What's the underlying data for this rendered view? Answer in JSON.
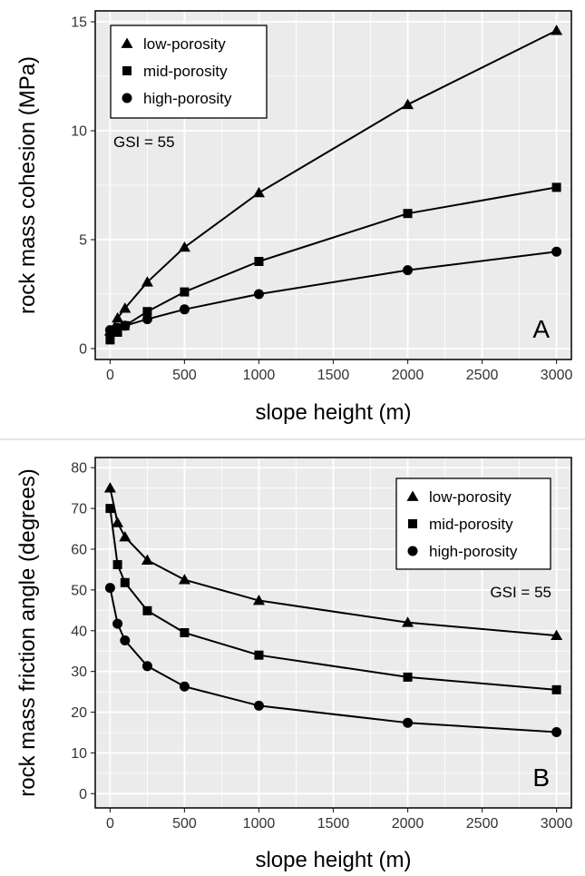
{
  "chart_data": [
    {
      "type": "line",
      "panel": "A",
      "xlabel": "slope height (m)",
      "ylabel": "rock mass cohesion (MPa)",
      "xlim": [
        -100,
        3100
      ],
      "ylim": [
        -0.5,
        15.5
      ],
      "xticks": [
        0,
        500,
        1000,
        1500,
        2000,
        2500,
        3000
      ],
      "yticks": [
        0,
        5,
        10,
        15
      ],
      "x": [
        0,
        50,
        100,
        250,
        500,
        1000,
        2000,
        3000
      ],
      "series": [
        {
          "name": "low-porosity",
          "marker": "triangle",
          "values": [
            0.8,
            1.4,
            1.85,
            3.05,
            4.65,
            7.15,
            11.2,
            14.6
          ]
        },
        {
          "name": "mid-porosity",
          "marker": "square",
          "values": [
            0.4,
            0.75,
            1.05,
            1.7,
            2.6,
            4.0,
            6.2,
            7.4
          ]
        },
        {
          "name": "high-porosity",
          "marker": "circle",
          "values": [
            0.85,
            0.95,
            1.05,
            1.35,
            1.8,
            2.5,
            3.6,
            4.45
          ]
        }
      ],
      "annotation": "GSI = 55",
      "panel_label": "A",
      "legend_position": "top-left",
      "grid": true
    },
    {
      "type": "line",
      "panel": "B",
      "xlabel": "slope height (m)",
      "ylabel": "rock mass friction angle (degrees)",
      "xlim": [
        -100,
        3100
      ],
      "ylim": [
        -3.5,
        82.5
      ],
      "xticks": [
        0,
        500,
        1000,
        1500,
        2000,
        2500,
        3000
      ],
      "yticks": [
        0,
        10,
        20,
        30,
        40,
        50,
        60,
        70,
        80
      ],
      "x": [
        0,
        50,
        100,
        250,
        500,
        1000,
        2000,
        3000
      ],
      "series": [
        {
          "name": "low-porosity",
          "marker": "triangle",
          "values": [
            75,
            66.5,
            63,
            57.3,
            52.5,
            47.4,
            42,
            38.8
          ]
        },
        {
          "name": "mid-porosity",
          "marker": "square",
          "values": [
            70,
            56.2,
            51.8,
            44.9,
            39.5,
            34,
            28.6,
            25.5
          ]
        },
        {
          "name": "high-porosity",
          "marker": "circle",
          "values": [
            50.5,
            41.7,
            37.6,
            31.3,
            26.3,
            21.6,
            17.4,
            15.1
          ]
        }
      ],
      "annotation": "GSI = 55",
      "panel_label": "B",
      "legend_position": "top-right",
      "grid": true
    }
  ],
  "colors": {
    "panel_bg": "#ebebeb",
    "grid": "#ffffff",
    "line": "#000000"
  }
}
